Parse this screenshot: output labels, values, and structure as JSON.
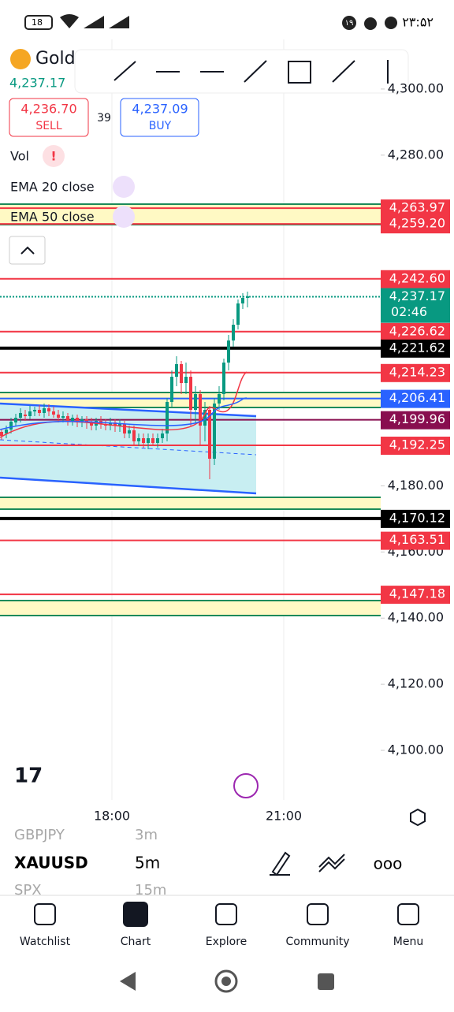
{
  "status_bar": {
    "battery": "18",
    "badge": "۱۹",
    "time": "۲۳:۵۲"
  },
  "header": {
    "symbol": "Gold",
    "price": "4,237.17",
    "sell_price": "4,236.70",
    "sell_label": "SELL",
    "spread": "39",
    "buy_price": "4,237.09",
    "buy_label": "BUY"
  },
  "indicators": [
    "Vol",
    "EMA 20 close",
    "EMA 50 close"
  ],
  "price_axis": {
    "ylim": [
      4085,
      4315
    ],
    "yticks": [
      {
        "value": 4300,
        "label": "4,300.00"
      },
      {
        "value": 4280,
        "label": "4,280.00"
      },
      {
        "value": 4180,
        "label": "4,180.00"
      },
      {
        "value": 4160,
        "label": "4,160.00"
      },
      {
        "value": 4140,
        "label": "4,140.00"
      },
      {
        "value": 4120,
        "label": "4,120.00"
      },
      {
        "value": 4100,
        "label": "4,100.00"
      }
    ],
    "levels": [
      {
        "value": 4263.97,
        "label": "4,263.97",
        "color": "#f23645"
      },
      {
        "value": 4259.2,
        "label": "4,259.20",
        "color": "#f23645"
      },
      {
        "value": 4242.6,
        "label": "4,242.60",
        "color": "#f23645"
      },
      {
        "value": 4237.17,
        "label": "4,237.17",
        "color": "#089981",
        "countdown": "02:46"
      },
      {
        "value": 4226.62,
        "label": "4,226.62",
        "color": "#f23645"
      },
      {
        "value": 4221.62,
        "label": "4,221.62",
        "color": "#000000"
      },
      {
        "value": 4214.23,
        "label": "4,214.23",
        "color": "#f23645"
      },
      {
        "value": 4206.41,
        "label": "4,206.41",
        "color": "#2962ff"
      },
      {
        "value": 4199.96,
        "label": "4,199.96",
        "color": "#880e4f"
      },
      {
        "value": 4192.25,
        "label": "4,192.25",
        "color": "#f23645"
      },
      {
        "value": 4170.12,
        "label": "4,170.12",
        "color": "#000000"
      },
      {
        "value": 4163.51,
        "label": "4,163.51",
        "color": "#f23645"
      },
      {
        "value": 4147.18,
        "label": "4,147.18",
        "color": "#f23645"
      }
    ]
  },
  "time_axis": [
    "18:00",
    "21:00"
  ],
  "watchlist_strip": [
    {
      "symbol": "GBPJPY",
      "interval": "3m"
    },
    {
      "symbol": "XAUUSD",
      "interval": "5m"
    },
    {
      "symbol": "SPX",
      "interval": "15m"
    }
  ],
  "nav": [
    "Watchlist",
    "Chart",
    "Explore",
    "Community",
    "Menu"
  ]
}
